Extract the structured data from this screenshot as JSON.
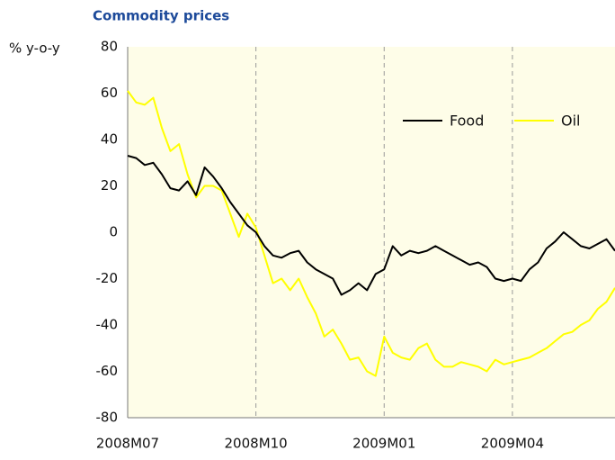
{
  "chart_data": {
    "type": "line",
    "title": "Commodity prices",
    "y_label": "% y-o-y",
    "categories": [
      "2008M07",
      null,
      null,
      null,
      null,
      null,
      null,
      null,
      null,
      null,
      null,
      null,
      null,
      null,
      null,
      "2008M10",
      null,
      null,
      null,
      null,
      null,
      null,
      null,
      null,
      null,
      null,
      null,
      null,
      null,
      null,
      "2009M01",
      null,
      null,
      null,
      null,
      null,
      null,
      null,
      null,
      null,
      null,
      null,
      null,
      null,
      null,
      "2009M04",
      null,
      null,
      null,
      null,
      null,
      null,
      null,
      null,
      null,
      null,
      null,
      null
    ],
    "series": [
      {
        "name": "Food",
        "color": "#000000",
        "values": [
          33,
          32,
          29,
          30,
          25,
          19,
          18,
          22,
          16,
          28,
          24,
          19,
          13,
          8,
          3,
          0,
          -6,
          -10,
          -11,
          -9,
          -8,
          -13,
          -16,
          -18,
          -20,
          -27,
          -25,
          -22,
          -25,
          -18,
          -16,
          -6,
          -10,
          -8,
          -9,
          -8,
          -6,
          -8,
          -10,
          -12,
          -14,
          -13,
          -15,
          -20,
          -21,
          -20,
          -21,
          -16,
          -13,
          -7,
          -4,
          0,
          -3,
          -6,
          -7,
          -5,
          -3,
          -8
        ]
      },
      {
        "name": "Oil",
        "color": "#ffff00",
        "values": [
          61,
          56,
          55,
          58,
          45,
          35,
          38,
          25,
          15,
          20,
          20,
          18,
          8,
          -2,
          8,
          2,
          -10,
          -22,
          -20,
          -25,
          -20,
          -28,
          -35,
          -45,
          -42,
          -48,
          -55,
          -54,
          -60,
          -62,
          -45,
          -52,
          -54,
          -55,
          -50,
          -48,
          -55,
          -58,
          -58,
          -56,
          -57,
          -58,
          -60,
          -55,
          -57,
          -56,
          -55,
          -54,
          -52,
          -50,
          -47,
          -44,
          -43,
          -40,
          -38,
          -33,
          -30,
          -24
        ]
      }
    ],
    "ylim": [
      -80,
      80
    ],
    "yticks": [
      -80,
      -60,
      -40,
      -20,
      0,
      20,
      40,
      60,
      80
    ],
    "grid": true,
    "legend": "upper right"
  }
}
